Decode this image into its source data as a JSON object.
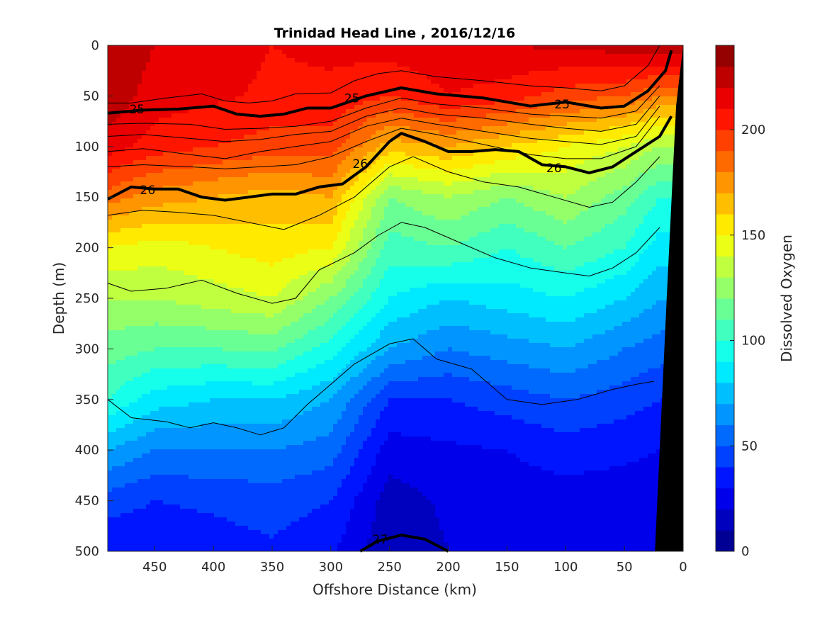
{
  "chart_data": {
    "type": "heatmap",
    "title": "Trinidad Head Line , 2016/12/16",
    "xlabel": "Offshore Distance (km)",
    "ylabel": "Depth (m)",
    "colorbar_label": "Dissolved Oxygen",
    "xlim": [
      490,
      0
    ],
    "ylim": [
      0,
      500
    ],
    "clim": [
      0,
      240
    ],
    "x_ticks": [
      450,
      400,
      350,
      300,
      250,
      200,
      150,
      100,
      50,
      0
    ],
    "y_ticks": [
      0,
      50,
      100,
      150,
      200,
      250,
      300,
      350,
      400,
      450,
      500
    ],
    "colorbar_ticks": [
      0,
      50,
      100,
      150,
      200
    ],
    "colormap": "jet",
    "colormap_levels": 24,
    "oxygen_profiles": {
      "depths": [
        0,
        50,
        100,
        150,
        200,
        250,
        300,
        350,
        400,
        450,
        500
      ],
      "stations": [
        {
          "x": 490,
          "values": [
            230,
            228,
            215,
            185,
            150,
            130,
            115,
            100,
            70,
            45,
            30
          ]
        },
        {
          "x": 450,
          "values": [
            220,
            215,
            205,
            175,
            145,
            130,
            110,
            85,
            60,
            40,
            32
          ]
        },
        {
          "x": 400,
          "values": [
            215,
            212,
            200,
            170,
            150,
            135,
            110,
            80,
            60,
            42,
            35
          ]
        },
        {
          "x": 350,
          "values": [
            210,
            208,
            195,
            165,
            155,
            140,
            112,
            80,
            60,
            45,
            38
          ]
        },
        {
          "x": 300,
          "values": [
            212,
            208,
            195,
            170,
            150,
            120,
            95,
            70,
            55,
            40,
            32
          ]
        },
        {
          "x": 250,
          "values": [
            215,
            200,
            165,
            120,
            105,
            90,
            70,
            40,
            25,
            15,
            12
          ]
        },
        {
          "x": 200,
          "values": [
            218,
            210,
            170,
            130,
            110,
            80,
            60,
            40,
            28,
            22,
            20
          ]
        },
        {
          "x": 150,
          "values": [
            220,
            205,
            160,
            120,
            100,
            85,
            65,
            45,
            30,
            25,
            22
          ]
        },
        {
          "x": 100,
          "values": [
            222,
            195,
            150,
            130,
            110,
            90,
            70,
            50,
            35,
            25,
            22
          ]
        },
        {
          "x": 50,
          "values": [
            225,
            190,
            140,
            115,
            100,
            80,
            60,
            45,
            32,
            25,
            22
          ]
        },
        {
          "x": 20,
          "values": [
            230,
            180,
            130,
            100,
            85,
            70,
            55,
            40,
            30,
            25,
            22
          ]
        }
      ]
    },
    "density_contours": [
      {
        "points": [
          [
            490,
            57
          ],
          [
            470,
            57
          ],
          [
            440,
            52
          ],
          [
            410,
            48
          ],
          [
            390,
            55
          ],
          [
            370,
            57
          ],
          [
            350,
            55
          ],
          [
            330,
            48
          ],
          [
            300,
            47
          ],
          [
            280,
            35
          ],
          [
            260,
            28
          ],
          [
            240,
            25
          ],
          [
            210,
            31
          ],
          [
            170,
            35
          ],
          [
            130,
            40
          ],
          [
            100,
            42
          ],
          [
            70,
            45
          ],
          [
            50,
            40
          ],
          [
            30,
            20
          ],
          [
            20,
            0
          ]
        ]
      },
      {
        "points": [
          [
            490,
            67
          ],
          [
            460,
            64
          ],
          [
            430,
            63
          ],
          [
            400,
            60
          ],
          [
            380,
            68
          ],
          [
            360,
            70
          ],
          [
            340,
            68
          ],
          [
            320,
            62
          ],
          [
            300,
            62
          ],
          [
            270,
            50
          ],
          [
            240,
            42
          ],
          [
            210,
            48
          ],
          [
            170,
            52
          ],
          [
            130,
            60
          ],
          [
            100,
            56
          ],
          [
            70,
            62
          ],
          [
            50,
            60
          ],
          [
            30,
            45
          ],
          [
            15,
            25
          ],
          [
            10,
            5
          ]
        ],
        "bold": true,
        "label": "25",
        "label_at": [
          [
            465,
            63
          ],
          [
            282,
            52
          ],
          [
            103,
            58
          ]
        ]
      },
      {
        "points": [
          [
            490,
            78
          ],
          [
            460,
            77
          ],
          [
            420,
            78
          ],
          [
            390,
            83
          ],
          [
            360,
            82
          ],
          [
            330,
            80
          ],
          [
            300,
            75
          ],
          [
            270,
            62
          ],
          [
            240,
            52
          ],
          [
            210,
            58
          ],
          [
            170,
            62
          ],
          [
            130,
            68
          ],
          [
            100,
            70
          ],
          [
            70,
            72
          ],
          [
            40,
            65
          ],
          [
            20,
            40
          ]
        ]
      },
      {
        "points": [
          [
            490,
            90
          ],
          [
            460,
            88
          ],
          [
            420,
            92
          ],
          [
            390,
            95
          ],
          [
            360,
            93
          ],
          [
            330,
            88
          ],
          [
            300,
            85
          ],
          [
            270,
            70
          ],
          [
            240,
            62
          ],
          [
            210,
            68
          ],
          [
            170,
            72
          ],
          [
            130,
            78
          ],
          [
            100,
            82
          ],
          [
            70,
            85
          ],
          [
            40,
            78
          ],
          [
            20,
            50
          ]
        ]
      },
      {
        "points": [
          [
            490,
            105
          ],
          [
            460,
            102
          ],
          [
            420,
            108
          ],
          [
            390,
            112
          ],
          [
            360,
            105
          ],
          [
            330,
            100
          ],
          [
            300,
            95
          ],
          [
            270,
            80
          ],
          [
            240,
            72
          ],
          [
            210,
            78
          ],
          [
            170,
            85
          ],
          [
            130,
            92
          ],
          [
            100,
            95
          ],
          [
            70,
            98
          ],
          [
            40,
            90
          ],
          [
            20,
            60
          ]
        ]
      },
      {
        "points": [
          [
            490,
            120
          ],
          [
            460,
            118
          ],
          [
            420,
            120
          ],
          [
            390,
            122
          ],
          [
            360,
            120
          ],
          [
            330,
            118
          ],
          [
            300,
            110
          ],
          [
            270,
            95
          ],
          [
            240,
            82
          ],
          [
            210,
            88
          ],
          [
            170,
            98
          ],
          [
            130,
            108
          ],
          [
            100,
            112
          ],
          [
            70,
            112
          ],
          [
            40,
            100
          ],
          [
            20,
            70
          ]
        ]
      },
      {
        "points": [
          [
            490,
            152
          ],
          [
            470,
            140
          ],
          [
            450,
            142
          ],
          [
            430,
            142
          ],
          [
            410,
            150
          ],
          [
            390,
            153
          ],
          [
            370,
            150
          ],
          [
            350,
            147
          ],
          [
            330,
            147
          ],
          [
            310,
            140
          ],
          [
            290,
            137
          ],
          [
            270,
            120
          ],
          [
            250,
            95
          ],
          [
            240,
            87
          ],
          [
            220,
            95
          ],
          [
            200,
            105
          ],
          [
            180,
            105
          ],
          [
            160,
            103
          ],
          [
            140,
            105
          ],
          [
            120,
            118
          ],
          [
            100,
            120
          ],
          [
            80,
            126
          ],
          [
            60,
            120
          ],
          [
            40,
            105
          ],
          [
            20,
            90
          ],
          [
            10,
            70
          ]
        ],
        "bold": true,
        "label": "26",
        "label_at": [
          [
            456,
            143
          ],
          [
            275,
            117
          ],
          [
            110,
            121
          ]
        ]
      },
      {
        "points": [
          [
            490,
            168
          ],
          [
            460,
            163
          ],
          [
            430,
            165
          ],
          [
            400,
            168
          ],
          [
            370,
            175
          ],
          [
            340,
            182
          ],
          [
            310,
            168
          ],
          [
            280,
            150
          ],
          [
            250,
            120
          ],
          [
            230,
            110
          ],
          [
            200,
            125
          ],
          [
            170,
            135
          ],
          [
            140,
            140
          ],
          [
            110,
            150
          ],
          [
            80,
            160
          ],
          [
            60,
            155
          ],
          [
            40,
            135
          ],
          [
            20,
            110
          ]
        ]
      },
      {
        "points": [
          [
            490,
            235
          ],
          [
            470,
            243
          ],
          [
            440,
            240
          ],
          [
            410,
            232
          ],
          [
            380,
            245
          ],
          [
            350,
            255
          ],
          [
            330,
            250
          ],
          [
            310,
            222
          ],
          [
            280,
            205
          ],
          [
            260,
            188
          ],
          [
            240,
            175
          ],
          [
            220,
            180
          ],
          [
            190,
            195
          ],
          [
            160,
            210
          ],
          [
            130,
            220
          ],
          [
            100,
            225
          ],
          [
            80,
            228
          ],
          [
            60,
            220
          ],
          [
            40,
            205
          ],
          [
            20,
            180
          ]
        ]
      },
      {
        "points": [
          [
            490,
            350
          ],
          [
            470,
            368
          ],
          [
            440,
            372
          ],
          [
            420,
            378
          ],
          [
            400,
            373
          ],
          [
            380,
            378
          ],
          [
            360,
            385
          ],
          [
            340,
            378
          ],
          [
            320,
            355
          ],
          [
            300,
            335
          ],
          [
            280,
            315
          ],
          [
            250,
            295
          ],
          [
            230,
            290
          ],
          [
            210,
            310
          ],
          [
            180,
            320
          ],
          [
            150,
            350
          ],
          [
            120,
            355
          ],
          [
            90,
            350
          ],
          [
            60,
            340
          ],
          [
            40,
            335
          ],
          [
            25,
            332
          ]
        ]
      },
      {
        "points": [
          [
            275,
            500
          ],
          [
            260,
            490
          ],
          [
            240,
            484
          ],
          [
            220,
            488
          ],
          [
            200,
            500
          ]
        ],
        "bold": true,
        "label": "27",
        "label_at": [
          [
            258,
            488
          ]
        ]
      }
    ],
    "land_mask": "black wedge at shelf (near 0 km) from surface to 500 m"
  }
}
